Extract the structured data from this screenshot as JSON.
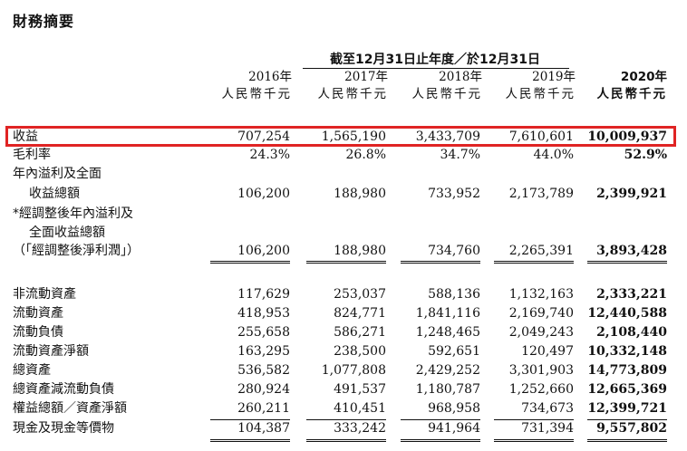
{
  "title": "財務摘要",
  "period_header": "截至12月31日止年度／於12月31日",
  "columns": [
    {
      "year": "2016年",
      "unit": "人民幣千元",
      "bold": false
    },
    {
      "year": "2017年",
      "unit": "人民幣千元",
      "bold": false
    },
    {
      "year": "2018年",
      "unit": "人民幣千元",
      "bold": false
    },
    {
      "year": "2019年",
      "unit": "人民幣千元",
      "bold": false
    },
    {
      "year": "2020年",
      "unit": "人民幣千元",
      "bold": true
    }
  ],
  "rows": [
    {
      "label": "收益",
      "values": [
        "707,254",
        "1,565,190",
        "3,433,709",
        "7,610,601",
        "10,009,937"
      ],
      "highlighted": true
    },
    {
      "label": "毛利率",
      "values": [
        "24.3%",
        "26.8%",
        "34.7%",
        "44.0%",
        "52.9%"
      ]
    },
    {
      "label": "年內溢利及全面",
      "values": [
        "",
        "",
        "",
        "",
        ""
      ]
    },
    {
      "label": "收益總額",
      "indent": true,
      "values": [
        "106,200",
        "188,980",
        "733,952",
        "2,173,789",
        "2,399,921"
      ]
    },
    {
      "label": "*經調整後年內溢利及",
      "values": [
        "",
        "",
        "",
        "",
        ""
      ]
    },
    {
      "label": "全面收益總額",
      "indent": true,
      "values": [
        "",
        "",
        "",
        "",
        ""
      ]
    },
    {
      "label": "（「經調整後淨利潤」）",
      "values": [
        "106,200",
        "188,980",
        "734,760",
        "2,265,391",
        "3,893,428"
      ]
    },
    {
      "label": "非流動資產",
      "values": [
        "117,629",
        "253,037",
        "588,136",
        "1,132,163",
        "2,333,221"
      ]
    },
    {
      "label": "流動資產",
      "values": [
        "418,953",
        "824,771",
        "1,841,116",
        "2,169,740",
        "12,440,588"
      ]
    },
    {
      "label": "流動負債",
      "values": [
        "255,658",
        "586,271",
        "1,248,465",
        "2,049,243",
        "2,108,440"
      ]
    },
    {
      "label": "流動資產淨額",
      "values": [
        "163,295",
        "238,500",
        "592,651",
        "120,497",
        "10,332,148"
      ]
    },
    {
      "label": "總資產",
      "values": [
        "536,582",
        "1,077,808",
        "2,429,252",
        "3,301,903",
        "14,773,809"
      ]
    },
    {
      "label": "總資產減流動負債",
      "values": [
        "280,924",
        "491,537",
        "1,180,787",
        "1,252,660",
        "12,665,369"
      ]
    },
    {
      "label": "權益總額／資產淨額",
      "values": [
        "260,211",
        "410,451",
        "968,958",
        "734,673",
        "12,399,721"
      ]
    },
    {
      "label": "現金及現金等價物",
      "values": [
        "104,387",
        "333,242",
        "941,964",
        "731,394",
        "9,557,802"
      ]
    }
  ]
}
